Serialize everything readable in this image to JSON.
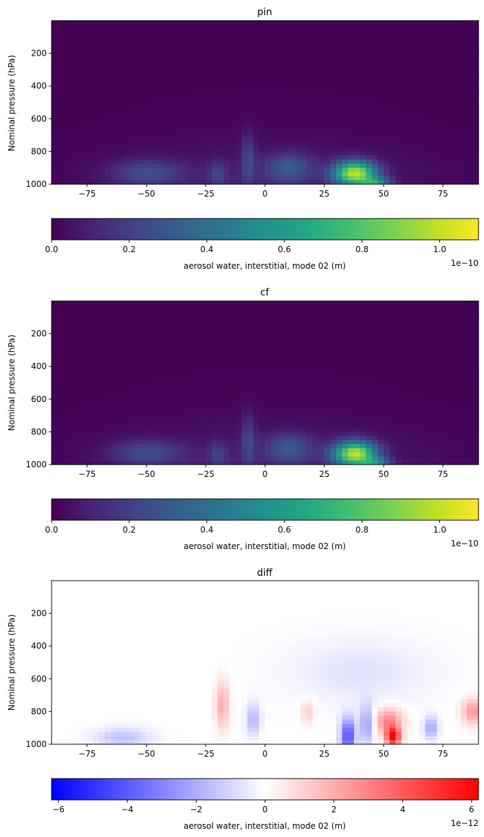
{
  "chart_data": [
    {
      "type": "heatmap",
      "title": "pin",
      "xlabel": "",
      "ylabel": "Nominal pressure (hPa)",
      "xlim": [
        -90,
        90
      ],
      "ylim": [
        1000,
        0
      ],
      "xticks": [
        -75,
        -50,
        -25,
        0,
        25,
        50,
        75
      ],
      "xtick_labels": [
        "−75",
        "−50",
        "−25",
        "0",
        "25",
        "50",
        "75"
      ],
      "yticks": [
        200,
        400,
        600,
        800,
        1000
      ],
      "ytick_labels": [
        "200",
        "400",
        "600",
        "800",
        "1000"
      ],
      "colormap": "viridis",
      "colorbar": {
        "label": "aerosol water, interstitial, mode 02 (m)",
        "range": [
          0,
          1.1e-10
        ],
        "ticks": [
          0,
          2e-11,
          4e-11,
          6e-11,
          8e-11,
          1e-10
        ],
        "tick_labels": [
          "0.0",
          "0.2",
          "0.4",
          "0.6",
          "0.8",
          "1.0"
        ],
        "offset_text": "1e−10"
      },
      "features": [
        {
          "lat": 38,
          "p": 935,
          "amplitude": 9.5e-11,
          "lat_width": 9,
          "p_width": 75
        },
        {
          "lat": 47,
          "p": 990,
          "amplitude": 4e-11,
          "lat_width": 6,
          "p_width": 30
        },
        {
          "lat": 10,
          "p": 900,
          "amplitude": 2.5e-11,
          "lat_width": 10,
          "p_width": 90
        },
        {
          "lat": -50,
          "p": 930,
          "amplitude": 2.2e-11,
          "lat_width": 15,
          "p_width": 80
        },
        {
          "lat": -7,
          "p": 850,
          "amplitude": 1.8e-11,
          "lat_width": 3,
          "p_width": 160
        },
        {
          "lat": -20,
          "p": 940,
          "amplitude": 1.5e-11,
          "lat_width": 4,
          "p_width": 80
        }
      ]
    },
    {
      "type": "heatmap",
      "title": "cf",
      "xlabel": "",
      "ylabel": "Nominal pressure (hPa)",
      "xlim": [
        -90,
        90
      ],
      "ylim": [
        1000,
        0
      ],
      "xticks": [
        -75,
        -50,
        -25,
        0,
        25,
        50,
        75
      ],
      "xtick_labels": [
        "−75",
        "−50",
        "−25",
        "0",
        "25",
        "50",
        "75"
      ],
      "yticks": [
        200,
        400,
        600,
        800,
        1000
      ],
      "ytick_labels": [
        "200",
        "400",
        "600",
        "800",
        "1000"
      ],
      "colormap": "viridis",
      "colorbar": {
        "label": "aerosol water, interstitial, mode 02 (m)",
        "range": [
          0,
          1.1e-10
        ],
        "ticks": [
          0,
          2e-11,
          4e-11,
          6e-11,
          8e-11,
          1e-10
        ],
        "tick_labels": [
          "0.0",
          "0.2",
          "0.4",
          "0.6",
          "0.8",
          "1.0"
        ],
        "offset_text": "1e−10"
      },
      "features": [
        {
          "lat": 38,
          "p": 935,
          "amplitude": 9.5e-11,
          "lat_width": 9,
          "p_width": 75
        },
        {
          "lat": 47,
          "p": 990,
          "amplitude": 3.5e-11,
          "lat_width": 6,
          "p_width": 30
        },
        {
          "lat": 10,
          "p": 900,
          "amplitude": 2.4e-11,
          "lat_width": 10,
          "p_width": 90
        },
        {
          "lat": -50,
          "p": 930,
          "amplitude": 2.1e-11,
          "lat_width": 15,
          "p_width": 80
        },
        {
          "lat": -7,
          "p": 850,
          "amplitude": 1.7e-11,
          "lat_width": 3,
          "p_width": 160
        },
        {
          "lat": -20,
          "p": 940,
          "amplitude": 1.4e-11,
          "lat_width": 4,
          "p_width": 80
        }
      ]
    },
    {
      "type": "heatmap",
      "title": "diff",
      "xlabel": "",
      "ylabel": "Nominal pressure (hPa)",
      "xlim": [
        -90,
        90
      ],
      "ylim": [
        1000,
        0
      ],
      "xticks": [
        -75,
        -50,
        -25,
        0,
        25,
        50,
        75
      ],
      "xtick_labels": [
        "−75",
        "−50",
        "−25",
        "0",
        "25",
        "50",
        "75"
      ],
      "yticks": [
        200,
        400,
        600,
        800,
        1000
      ],
      "ytick_labels": [
        "200",
        "400",
        "600",
        "800",
        "1000"
      ],
      "colormap": "bwr",
      "colorbar": {
        "label": "aerosol water, interstitial, mode 02 (m)",
        "range": [
          -6.2e-12,
          6.2e-12
        ],
        "ticks": [
          -6e-12,
          -4e-12,
          -2e-12,
          0,
          2e-12,
          4e-12,
          6e-12
        ],
        "tick_labels": [
          "−6",
          "−4",
          "−2",
          "0",
          "2",
          "4",
          "6"
        ],
        "offset_text": "1e−12"
      },
      "features": [
        {
          "lat": 54,
          "p": 955,
          "amplitude": 6e-12,
          "lat_width": 3,
          "p_width": 55
        },
        {
          "lat": 52,
          "p": 860,
          "amplitude": 3e-12,
          "lat_width": 6,
          "p_width": 80
        },
        {
          "lat": 88,
          "p": 800,
          "amplitude": 2.5e-12,
          "lat_width": 5,
          "p_width": 80
        },
        {
          "lat": -18,
          "p": 760,
          "amplitude": 2e-12,
          "lat_width": 3,
          "p_width": 150
        },
        {
          "lat": 35,
          "p": 950,
          "amplitude": -4.5e-12,
          "lat_width": 3,
          "p_width": 110
        },
        {
          "lat": 43,
          "p": 880,
          "amplitude": -2.5e-12,
          "lat_width": 3,
          "p_width": 120
        },
        {
          "lat": 70,
          "p": 900,
          "amplitude": -2.2e-12,
          "lat_width": 3,
          "p_width": 70
        },
        {
          "lat": -60,
          "p": 960,
          "amplitude": -1.5e-12,
          "lat_width": 12,
          "p_width": 60
        },
        {
          "lat": 40,
          "p": 560,
          "amplitude": -7e-13,
          "lat_width": 30,
          "p_width": 200
        },
        {
          "lat": -5,
          "p": 850,
          "amplitude": -1.8e-12,
          "lat_width": 3,
          "p_width": 100
        },
        {
          "lat": 18,
          "p": 800,
          "amplitude": 1.2e-12,
          "lat_width": 3,
          "p_width": 80
        }
      ]
    }
  ]
}
